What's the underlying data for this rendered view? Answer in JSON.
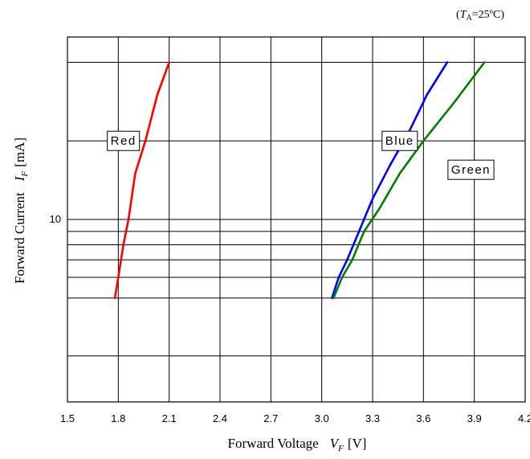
{
  "chart_data": {
    "type": "line",
    "condition": {
      "symbol": "T",
      "subscript": "A",
      "value": "=25ºC"
    },
    "xlabel": {
      "text": "Forward Voltage",
      "symbol": "V",
      "subscript": "F",
      "unit": "[V]"
    },
    "ylabel": {
      "text": "Forward Current",
      "symbol": "I",
      "subscript": "F",
      "unit": "[mA]"
    },
    "xlim": [
      1.5,
      4.2
    ],
    "ylim": [
      2,
      50
    ],
    "y_scale": "log",
    "x_ticks": [
      "1.5",
      "1.8",
      "2.1",
      "2.4",
      "2.7",
      "3.0",
      "3.3",
      "3.6",
      "3.9",
      "4.2"
    ],
    "y_tick_labels": [
      {
        "value": 10,
        "label": "10"
      }
    ],
    "y_gridlines": [
      3,
      5,
      6,
      7,
      8,
      9,
      10,
      20,
      40
    ],
    "grid": true,
    "colors": {
      "Red": "#ff0000",
      "Blue": "#0000ff",
      "Green": "#008000"
    },
    "series": [
      {
        "name": "Red",
        "color": "#ff0000",
        "x": [
          1.78,
          1.8,
          1.83,
          1.86,
          1.9,
          1.96,
          2.03,
          2.1
        ],
        "y": [
          5,
          6,
          8,
          10,
          15,
          20,
          30,
          40
        ]
      },
      {
        "name": "Blue",
        "color": "#0000ff",
        "x": [
          3.06,
          3.1,
          3.15,
          3.22,
          3.3,
          3.4,
          3.52,
          3.62,
          3.74
        ],
        "y": [
          5,
          6,
          7,
          9,
          12,
          16,
          22,
          30,
          40
        ]
      },
      {
        "name": "Green",
        "color": "#008000",
        "x": [
          3.07,
          3.12,
          3.18,
          3.25,
          3.34,
          3.46,
          3.6,
          3.78,
          3.96
        ],
        "y": [
          5,
          6,
          7,
          9,
          11,
          15,
          20,
          28,
          40
        ]
      }
    ]
  }
}
